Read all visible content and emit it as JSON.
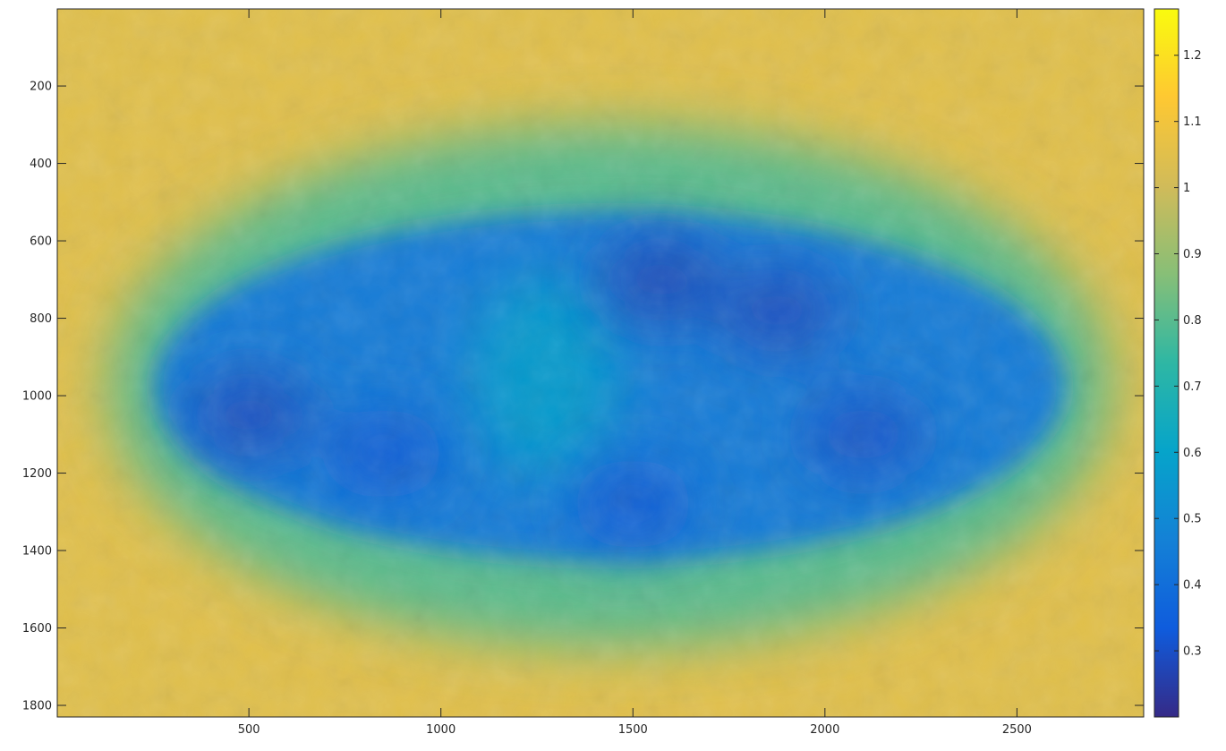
{
  "chart_data": {
    "type": "heatmap",
    "title": "",
    "xlabel": "",
    "ylabel": "",
    "xlim": [
      1,
      2830
    ],
    "ylim": [
      1,
      1830
    ],
    "y_reversed": true,
    "x_ticks": [
      500,
      1000,
      1500,
      2000,
      2500
    ],
    "y_ticks": [
      200,
      400,
      600,
      800,
      1000,
      1200,
      1400,
      1600,
      1800
    ],
    "colorbar": {
      "colormap": "parula",
      "range": [
        0.2,
        1.27
      ],
      "ticks": [
        0.3,
        0.4,
        0.5,
        0.6,
        0.7,
        0.8,
        0.9,
        1,
        1.1,
        1.2
      ],
      "stops": [
        "#352a87",
        "#0f5cdd",
        "#1481d6",
        "#06a4ca",
        "#2eb7a4",
        "#87bf77",
        "#d1bb59",
        "#fec832",
        "#f9fb0e"
      ]
    },
    "regions": {
      "background_level": 1.05,
      "halo_level": 0.8,
      "blob_level": 0.45,
      "blob_x_range": [
        230,
        2650
      ],
      "blob_y_range": [
        450,
        1500
      ],
      "dark_spots": [
        {
          "x": 500,
          "y": 1050,
          "value": 0.28
        },
        {
          "x": 1570,
          "y": 700,
          "value": 0.27
        },
        {
          "x": 1880,
          "y": 780,
          "value": 0.28
        },
        {
          "x": 2100,
          "y": 1100,
          "value": 0.3
        },
        {
          "x": 850,
          "y": 1150,
          "value": 0.32
        },
        {
          "x": 1500,
          "y": 1280,
          "value": 0.32
        }
      ],
      "light_core": {
        "x": 1270,
        "y": 950,
        "value": 0.6
      }
    }
  }
}
